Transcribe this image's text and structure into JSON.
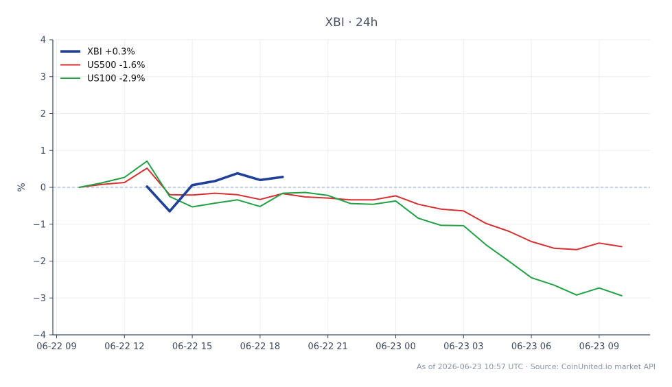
{
  "chart_data": {
    "type": "line",
    "title": "XBI · 24h",
    "ylabel": "%",
    "xlabel": "",
    "ylim": [
      -4,
      4
    ],
    "yticks": [
      4,
      3,
      2,
      1,
      0,
      -1,
      -2,
      -3,
      -4
    ],
    "ytick_labels": [
      "4",
      "3",
      "2",
      "1",
      "0",
      "−1",
      "−2",
      "−3",
      "−4"
    ],
    "x_domain": [
      "2026-06-22 08:50",
      "2026-06-23 11:15"
    ],
    "xticks": [
      {
        "t": "2026-06-22 09:00",
        "label": "06-22 09"
      },
      {
        "t": "2026-06-22 12:00",
        "label": "06-22 12"
      },
      {
        "t": "2026-06-22 15:00",
        "label": "06-22 15"
      },
      {
        "t": "2026-06-22 18:00",
        "label": "06-22 18"
      },
      {
        "t": "2026-06-22 21:00",
        "label": "06-22 21"
      },
      {
        "t": "2026-06-23 00:00",
        "label": "06-23 00"
      },
      {
        "t": "2026-06-23 03:00",
        "label": "06-23 03"
      },
      {
        "t": "2026-06-23 06:00",
        "label": "06-23 06"
      },
      {
        "t": "2026-06-23 09:00",
        "label": "06-23 09"
      }
    ],
    "grid": true,
    "legend_position": "top-left",
    "zero_line": true,
    "series": [
      {
        "name": "XBI +0.3%",
        "color": "#1f3f99",
        "emphasis": true,
        "points": [
          [
            "2026-06-22 13:00",
            0.02
          ],
          [
            "2026-06-22 14:00",
            -0.65
          ],
          [
            "2026-06-22 15:00",
            0.06
          ],
          [
            "2026-06-22 16:00",
            0.17
          ],
          [
            "2026-06-22 17:00",
            0.38
          ],
          [
            "2026-06-22 18:00",
            0.2
          ],
          [
            "2026-06-22 19:00",
            0.28
          ]
        ]
      },
      {
        "name": "US500 -1.6%",
        "color": "#d62f2f",
        "emphasis": false,
        "points": [
          [
            "2026-06-22 10:00",
            0.0
          ],
          [
            "2026-06-22 11:00",
            0.08
          ],
          [
            "2026-06-22 12:00",
            0.13
          ],
          [
            "2026-06-22 13:00",
            0.52
          ],
          [
            "2026-06-22 14:00",
            -0.2
          ],
          [
            "2026-06-22 15:00",
            -0.21
          ],
          [
            "2026-06-22 16:00",
            -0.16
          ],
          [
            "2026-06-22 17:00",
            -0.2
          ],
          [
            "2026-06-22 18:00",
            -0.33
          ],
          [
            "2026-06-22 19:00",
            -0.17
          ],
          [
            "2026-06-22 20:00",
            -0.26
          ],
          [
            "2026-06-22 21:00",
            -0.29
          ],
          [
            "2026-06-22 22:00",
            -0.34
          ],
          [
            "2026-06-22 23:00",
            -0.34
          ],
          [
            "2026-06-23 00:00",
            -0.23
          ],
          [
            "2026-06-23 01:00",
            -0.46
          ],
          [
            "2026-06-23 02:00",
            -0.59
          ],
          [
            "2026-06-23 03:00",
            -0.64
          ],
          [
            "2026-06-23 04:00",
            -0.98
          ],
          [
            "2026-06-23 05:00",
            -1.19
          ],
          [
            "2026-06-23 06:00",
            -1.47
          ],
          [
            "2026-06-23 07:00",
            -1.65
          ],
          [
            "2026-06-23 08:00",
            -1.69
          ],
          [
            "2026-06-23 09:00",
            -1.51
          ],
          [
            "2026-06-23 10:00",
            -1.61
          ]
        ]
      },
      {
        "name": "US100 -2.9%",
        "color": "#22a045",
        "emphasis": false,
        "points": [
          [
            "2026-06-22 10:00",
            0.0
          ],
          [
            "2026-06-22 11:00",
            0.12
          ],
          [
            "2026-06-22 12:00",
            0.27
          ],
          [
            "2026-06-22 13:00",
            0.71
          ],
          [
            "2026-06-22 14:00",
            -0.25
          ],
          [
            "2026-06-22 15:00",
            -0.53
          ],
          [
            "2026-06-22 16:00",
            -0.43
          ],
          [
            "2026-06-22 17:00",
            -0.34
          ],
          [
            "2026-06-22 18:00",
            -0.52
          ],
          [
            "2026-06-22 19:00",
            -0.16
          ],
          [
            "2026-06-22 20:00",
            -0.14
          ],
          [
            "2026-06-22 21:00",
            -0.22
          ],
          [
            "2026-06-22 22:00",
            -0.44
          ],
          [
            "2026-06-22 23:00",
            -0.46
          ],
          [
            "2026-06-23 00:00",
            -0.37
          ],
          [
            "2026-06-23 01:00",
            -0.84
          ],
          [
            "2026-06-23 02:00",
            -1.03
          ],
          [
            "2026-06-23 03:00",
            -1.04
          ],
          [
            "2026-06-23 04:00",
            -1.56
          ],
          [
            "2026-06-23 05:00",
            -2.0
          ],
          [
            "2026-06-23 06:00",
            -2.45
          ],
          [
            "2026-06-23 07:00",
            -2.65
          ],
          [
            "2026-06-23 08:00",
            -2.92
          ],
          [
            "2026-06-23 09:00",
            -2.73
          ],
          [
            "2026-06-23 10:00",
            -2.94
          ]
        ]
      }
    ]
  },
  "footer": {
    "text": "As of 2026-06-23 10:57 UTC · Source: CoinUnited.io market API"
  },
  "colors": {
    "axis": "#3e4a5c",
    "grid": "#eceef2",
    "zero_line": "#8aa0c2"
  }
}
